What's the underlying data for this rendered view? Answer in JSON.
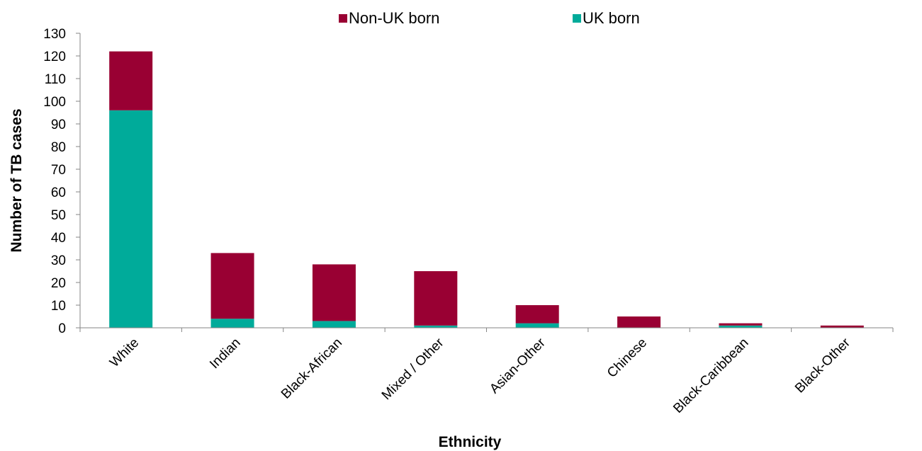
{
  "chart_data": {
    "type": "bar",
    "stacked": true,
    "title": "",
    "xlabel": "Ethnicity",
    "ylabel": "Number of TB cases",
    "ylim": [
      0,
      130
    ],
    "ytick_step": 10,
    "grid": false,
    "legend_position": "top",
    "categories": [
      "White",
      "Indian",
      "Black-African",
      "Mixed / Other",
      "Asian-Other",
      "Chinese",
      "Black-Caribbean",
      "Black-Other"
    ],
    "series": [
      {
        "name": "UK born",
        "color": "#00ab9a",
        "values": [
          96,
          4,
          3,
          1,
          2,
          0,
          1,
          0
        ]
      },
      {
        "name": "Non-UK born",
        "color": "#990033",
        "values": [
          26,
          29,
          25,
          24,
          8,
          5,
          1,
          1
        ]
      }
    ],
    "legend_order": [
      "Non-UK born",
      "UK born"
    ]
  }
}
